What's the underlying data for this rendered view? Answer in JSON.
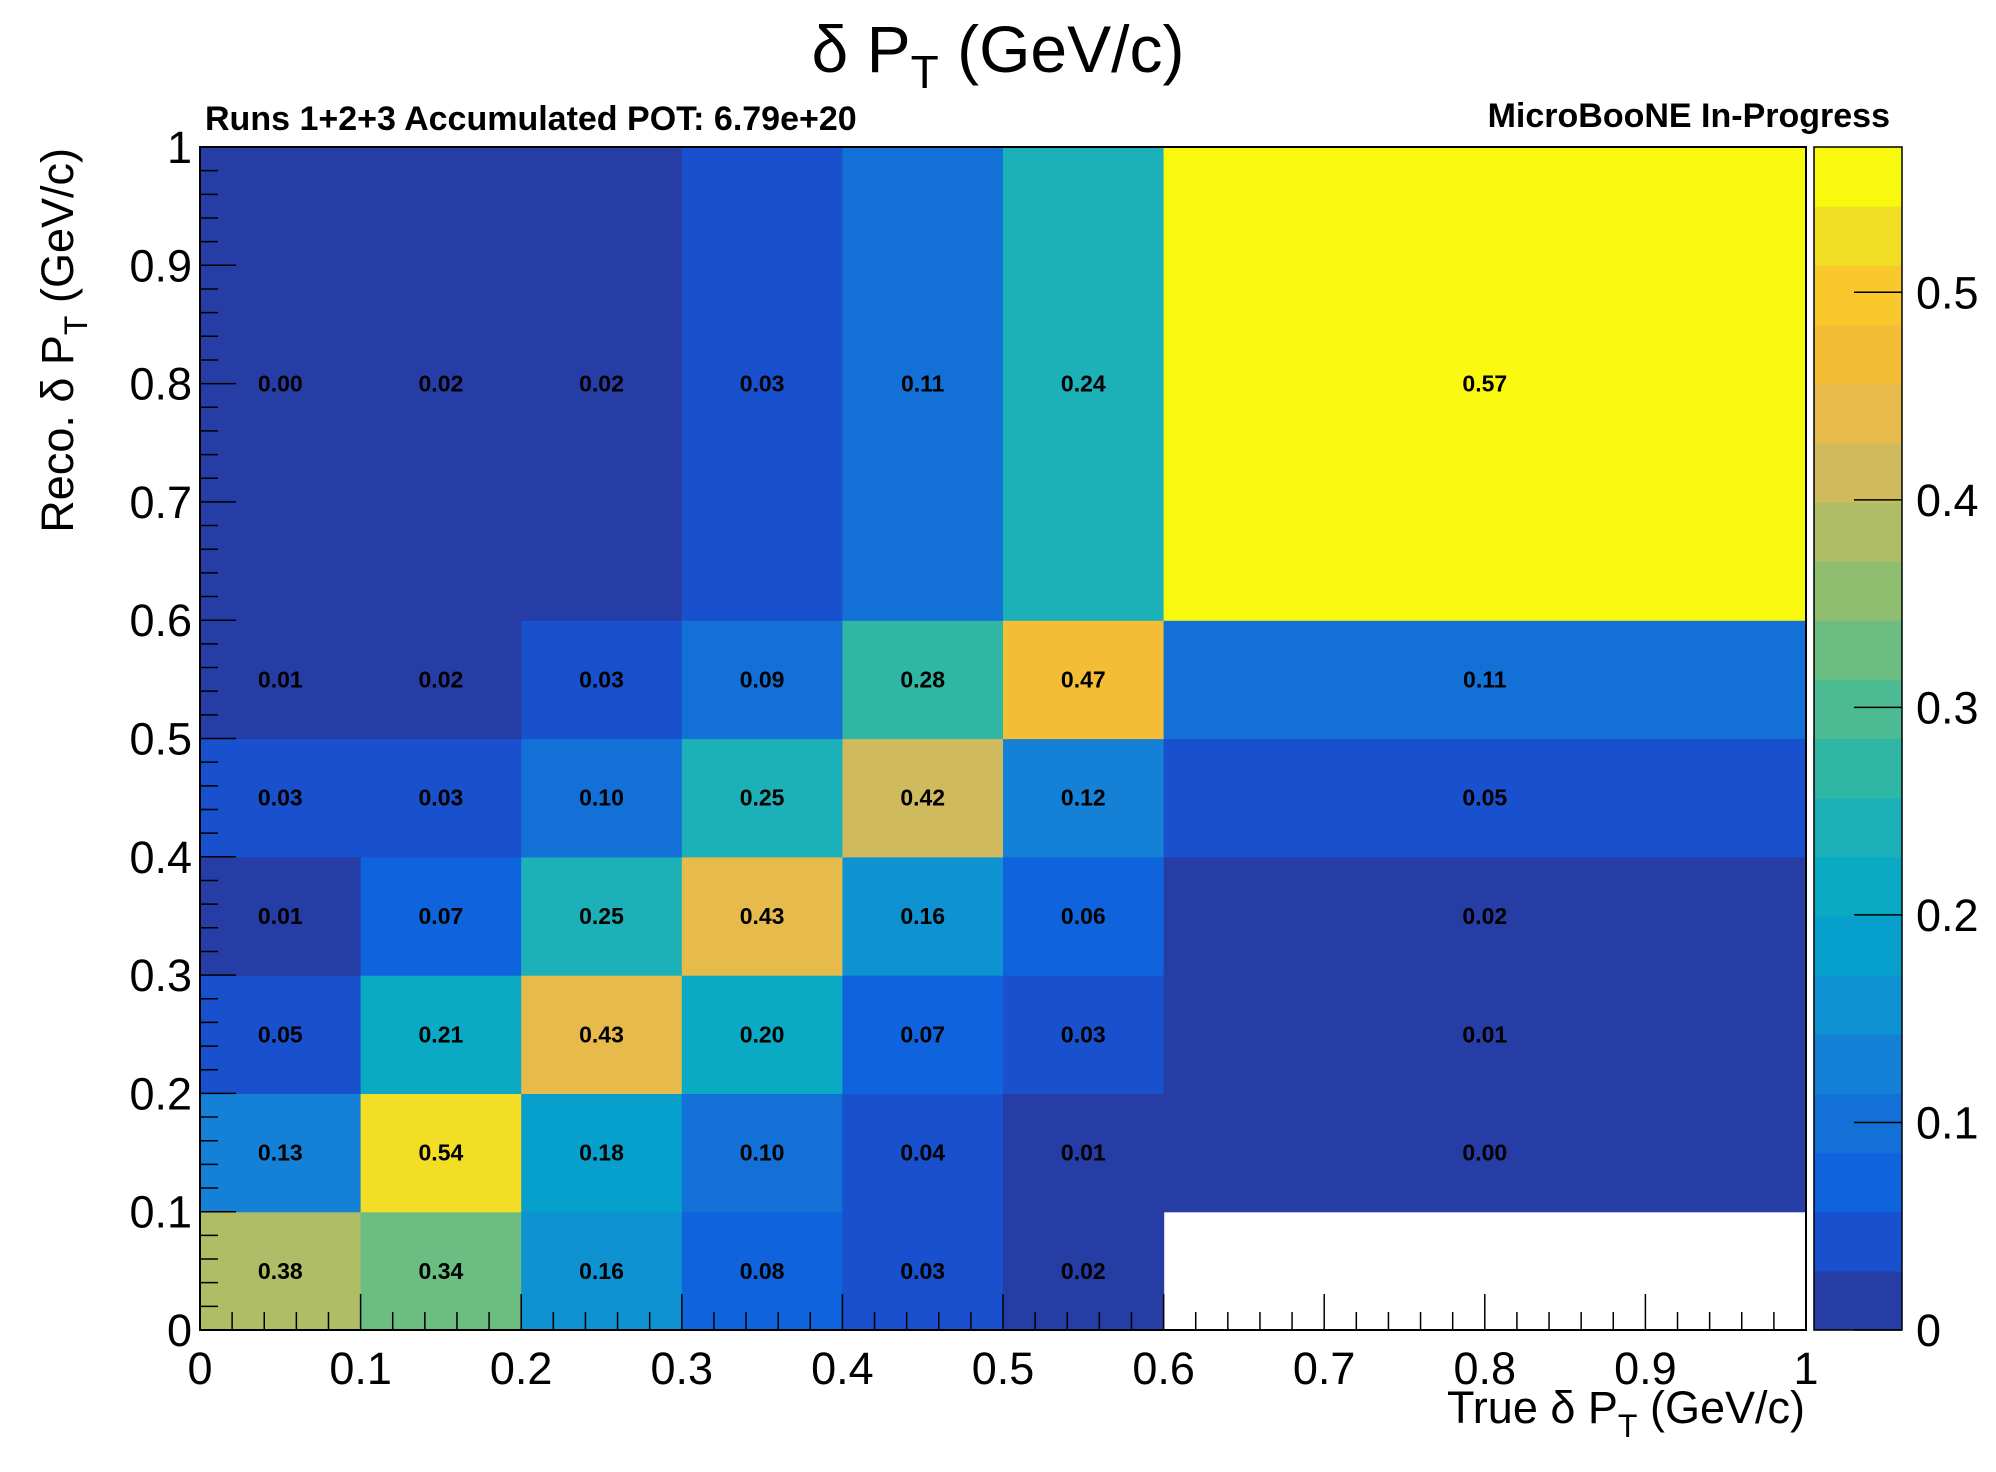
{
  "chart_data": {
    "type": "heatmap",
    "title": "δ P",
    "title_sub": "T",
    "title_unit": " (GeV/c)",
    "left_label": "Runs 1+2+3 Accumulated POT: 6.79e+20",
    "right_label": "MicroBooNE In-Progress",
    "xlabel_parts": [
      "True  δ P",
      "T",
      " (GeV/c)"
    ],
    "ylabel_parts": [
      "Reco.  δ P",
      "T",
      " (GeV/c)"
    ],
    "xlim": [
      0,
      1
    ],
    "ylim": [
      0,
      1
    ],
    "x_ticks": [
      "0",
      "0.1",
      "0.2",
      "0.3",
      "0.4",
      "0.5",
      "0.6",
      "0.7",
      "0.8",
      "0.9",
      "1"
    ],
    "y_ticks": [
      "0",
      "0.1",
      "0.2",
      "0.3",
      "0.4",
      "0.5",
      "0.6",
      "0.7",
      "0.8",
      "0.9",
      "1"
    ],
    "x_bins": [
      0,
      0.1,
      0.2,
      0.3,
      0.4,
      0.5,
      0.6,
      1.0
    ],
    "y_bins": [
      0,
      0.1,
      0.2,
      0.3,
      0.4,
      0.5,
      0.6,
      1.0
    ],
    "values": [
      [
        0.38,
        0.34,
        0.16,
        0.08,
        0.03,
        0.02,
        null
      ],
      [
        0.13,
        0.54,
        0.18,
        0.1,
        0.04,
        0.01,
        0.0
      ],
      [
        0.05,
        0.21,
        0.43,
        0.2,
        0.07,
        0.03,
        0.01
      ],
      [
        0.01,
        0.07,
        0.25,
        0.43,
        0.16,
        0.06,
        0.02
      ],
      [
        0.03,
        0.03,
        0.1,
        0.25,
        0.42,
        0.12,
        0.05
      ],
      [
        0.01,
        0.02,
        0.03,
        0.09,
        0.28,
        0.47,
        0.11
      ],
      [
        0.0,
        0.02,
        0.02,
        0.03,
        0.11,
        0.24,
        0.57
      ]
    ],
    "labels": [
      [
        "0.38",
        "0.34",
        "0.16",
        "0.08",
        "0.03",
        "0.02",
        ""
      ],
      [
        "0.13",
        "0.54",
        "0.18",
        "0.10",
        "0.04",
        "0.01",
        "0.00"
      ],
      [
        "0.05",
        "0.21",
        "0.43",
        "0.20",
        "0.07",
        "0.03",
        "0.01"
      ],
      [
        "0.01",
        "0.07",
        "0.25",
        "0.43",
        "0.16",
        "0.06",
        "0.02"
      ],
      [
        "0.03",
        "0.03",
        "0.10",
        "0.25",
        "0.42",
        "0.12",
        "0.05"
      ],
      [
        "0.01",
        "0.02",
        "0.03",
        "0.09",
        "0.28",
        "0.47",
        "0.11"
      ],
      [
        "0.00",
        "0.02",
        "0.02",
        "0.03",
        "0.11",
        "0.24",
        "0.57"
      ]
    ],
    "colorbar": {
      "range": [
        0,
        0.57
      ],
      "ticks": [
        "0",
        "0.1",
        "0.2",
        "0.3",
        "0.4",
        "0.5"
      ],
      "palette": [
        "#263da6",
        "#1950cd",
        "#0f64dd",
        "#1270d7",
        "#1480d6",
        "#0e92d1",
        "#079fcc",
        "#0aa9c4",
        "#1cb1b8",
        "#2fb6a5",
        "#4cba92",
        "#6bbd81",
        "#8fbe71",
        "#b0bd67",
        "#cfbb5d",
        "#e6bb4b",
        "#f4bd36",
        "#f8c82c",
        "#f3de26",
        "#f9f90f"
      ]
    },
    "grid": false
  }
}
